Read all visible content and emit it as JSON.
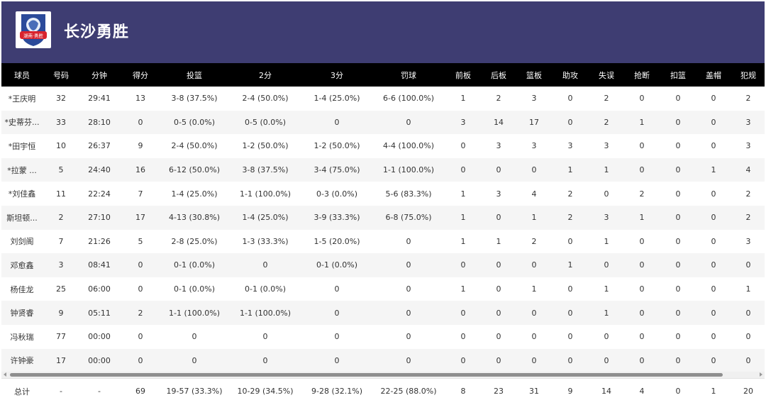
{
  "team": {
    "name": "长沙勇胜",
    "logo_text": "湖南·勇胜",
    "colors": {
      "header_bg": "#3e3d72",
      "logo_red": "#d9232d",
      "logo_blue": "#2b4a9a"
    }
  },
  "columns": [
    "球员",
    "号码",
    "分钟",
    "得分",
    "投篮",
    "2分",
    "3分",
    "罚球",
    "前板",
    "后板",
    "篮板",
    "助攻",
    "失误",
    "抢断",
    "扣篮",
    "盖帽",
    "犯规"
  ],
  "players": [
    [
      "*王庆明",
      "32",
      "29:41",
      "13",
      "3-8 (37.5%)",
      "2-4 (50.0%)",
      "1-4 (25.0%)",
      "6-6 (100.0%)",
      "1",
      "2",
      "3",
      "0",
      "2",
      "0",
      "0",
      "0",
      "2"
    ],
    [
      "*史蒂芬...",
      "33",
      "28:10",
      "0",
      "0-5 (0.0%)",
      "0-5 (0.0%)",
      "0",
      "0",
      "3",
      "14",
      "17",
      "0",
      "2",
      "1",
      "0",
      "0",
      "3"
    ],
    [
      "*田宇恒",
      "10",
      "26:37",
      "9",
      "2-4 (50.0%)",
      "1-2 (50.0%)",
      "1-2 (50.0%)",
      "4-4 (100.0%)",
      "0",
      "3",
      "3",
      "3",
      "3",
      "0",
      "0",
      "0",
      "3"
    ],
    [
      "*拉蒙 ...",
      "5",
      "24:40",
      "16",
      "6-12 (50.0%)",
      "3-8 (37.5%)",
      "3-4 (75.0%)",
      "1-1 (100.0%)",
      "0",
      "0",
      "0",
      "1",
      "1",
      "0",
      "0",
      "1",
      "4"
    ],
    [
      "*刘佳鑫",
      "11",
      "22:24",
      "7",
      "1-4 (25.0%)",
      "1-1 (100.0%)",
      "0-3 (0.0%)",
      "5-6 (83.3%)",
      "1",
      "3",
      "4",
      "2",
      "0",
      "2",
      "0",
      "0",
      "2"
    ],
    [
      "斯坦顿...",
      "2",
      "27:10",
      "17",
      "4-13 (30.8%)",
      "1-4 (25.0%)",
      "3-9 (33.3%)",
      "6-8 (75.0%)",
      "1",
      "0",
      "1",
      "2",
      "3",
      "1",
      "0",
      "0",
      "2"
    ],
    [
      "刘剑阁",
      "7",
      "21:26",
      "5",
      "2-8 (25.0%)",
      "1-3 (33.3%)",
      "1-5 (20.0%)",
      "0",
      "1",
      "1",
      "2",
      "0",
      "1",
      "0",
      "0",
      "0",
      "3"
    ],
    [
      "邓愈鑫",
      "3",
      "08:41",
      "0",
      "0-1 (0.0%)",
      "0",
      "0-1 (0.0%)",
      "0",
      "0",
      "0",
      "0",
      "1",
      "0",
      "0",
      "0",
      "0",
      "0"
    ],
    [
      "杨佳龙",
      "25",
      "06:00",
      "0",
      "0-1 (0.0%)",
      "0-1 (0.0%)",
      "0",
      "0",
      "1",
      "0",
      "1",
      "0",
      "1",
      "0",
      "0",
      "0",
      "1"
    ],
    [
      "钟贤睿",
      "9",
      "05:11",
      "2",
      "1-1 (100.0%)",
      "1-1 (100.0%)",
      "0",
      "0",
      "0",
      "0",
      "0",
      "0",
      "1",
      "0",
      "0",
      "0",
      "0"
    ],
    [
      "冯秋瑞",
      "77",
      "00:00",
      "0",
      "0",
      "0",
      "0",
      "0",
      "0",
      "0",
      "0",
      "0",
      "0",
      "0",
      "0",
      "0",
      "0"
    ],
    [
      "许钟豪",
      "17",
      "00:00",
      "0",
      "0",
      "0",
      "0",
      "0",
      "0",
      "0",
      "0",
      "0",
      "0",
      "0",
      "0",
      "0",
      "0"
    ]
  ],
  "totals": [
    "总计",
    "-",
    "-",
    "69",
    "19-57 (33.3%)",
    "10-29 (34.5%)",
    "9-28 (32.1%)",
    "22-25 (88.0%)",
    "8",
    "23",
    "31",
    "9",
    "14",
    "4",
    "0",
    "1",
    "20"
  ]
}
